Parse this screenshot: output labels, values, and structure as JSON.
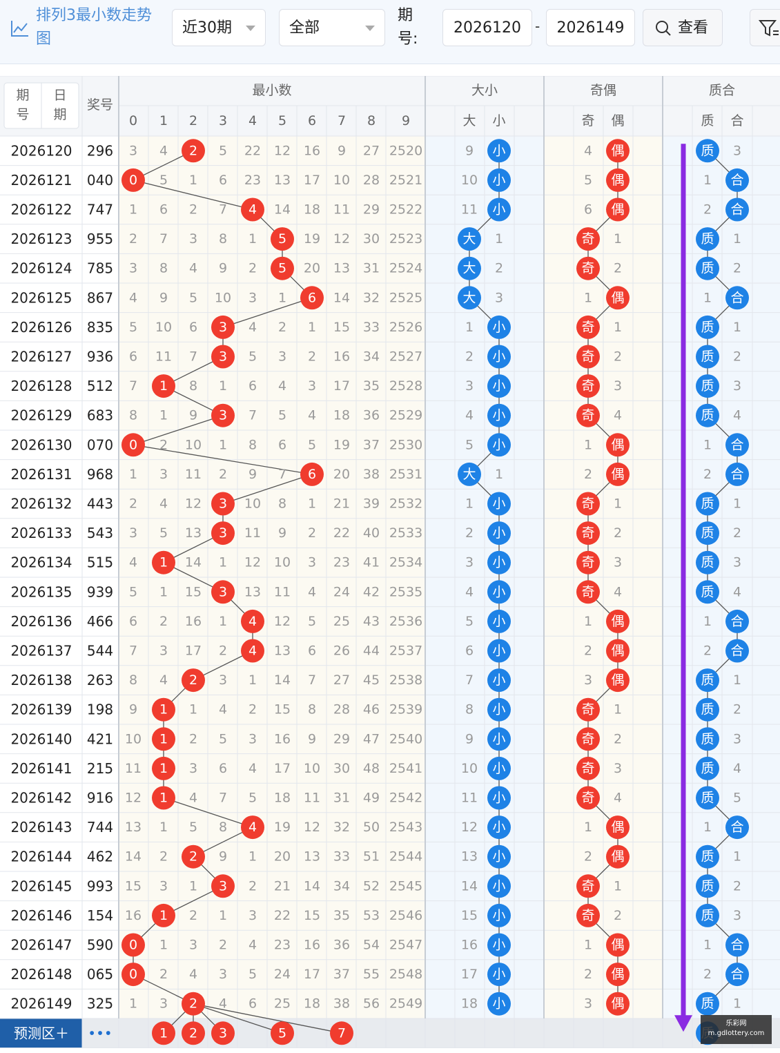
{
  "header": {
    "title": "排列3最小数走势图",
    "title_icon": "line-chart-icon",
    "period_select": "近30期",
    "filter_select": "全部",
    "issue_label": "期号:",
    "issue_from": "2026120",
    "issue_to": "2026149",
    "range_dash": "-",
    "view_button": "查看",
    "view_icon": "search-icon",
    "filter_icon": "filter-icon"
  },
  "table": {
    "col_issue": "期号",
    "col_date": "日期",
    "col_award": "奖号",
    "group_min": "最小数",
    "group_size": "大小",
    "group_oddeven": "奇偶",
    "group_prime": "质合",
    "digits": [
      "0",
      "1",
      "2",
      "3",
      "4",
      "5",
      "6",
      "7",
      "8",
      "9"
    ],
    "size_labels": [
      "大",
      "小"
    ],
    "oddeven_labels": [
      "奇",
      "偶"
    ],
    "prime_labels": [
      "质",
      "合"
    ],
    "rows": [
      {
        "issue": "2026120",
        "award": "296",
        "min": [
          "3",
          "4",
          "2",
          "5",
          "22",
          "12",
          "16",
          "9",
          "27",
          "2520"
        ],
        "size": [
          "9",
          "小"
        ],
        "oe": [
          "4",
          "偶"
        ],
        "pc": [
          "质",
          "3"
        ]
      },
      {
        "issue": "2026121",
        "award": "040",
        "min": [
          "0",
          "5",
          "1",
          "6",
          "23",
          "13",
          "17",
          "10",
          "28",
          "2521"
        ],
        "size": [
          "10",
          "小"
        ],
        "oe": [
          "5",
          "偶"
        ],
        "pc": [
          "1",
          "合"
        ]
      },
      {
        "issue": "2026122",
        "award": "747",
        "min": [
          "1",
          "6",
          "2",
          "7",
          "4",
          "14",
          "18",
          "11",
          "29",
          "2522"
        ],
        "size": [
          "11",
          "小"
        ],
        "oe": [
          "6",
          "偶"
        ],
        "pc": [
          "2",
          "合"
        ]
      },
      {
        "issue": "2026123",
        "award": "955",
        "min": [
          "2",
          "7",
          "3",
          "8",
          "1",
          "5",
          "19",
          "12",
          "30",
          "2523"
        ],
        "size": [
          "大",
          "1"
        ],
        "oe": [
          "奇",
          "1"
        ],
        "pc": [
          "质",
          "1"
        ]
      },
      {
        "issue": "2026124",
        "award": "785",
        "min": [
          "3",
          "8",
          "4",
          "9",
          "2",
          "5",
          "20",
          "13",
          "31",
          "2524"
        ],
        "size": [
          "大",
          "2"
        ],
        "oe": [
          "奇",
          "2"
        ],
        "pc": [
          "质",
          "2"
        ]
      },
      {
        "issue": "2026125",
        "award": "867",
        "min": [
          "4",
          "9",
          "5",
          "10",
          "3",
          "1",
          "6",
          "14",
          "32",
          "2525"
        ],
        "size": [
          "大",
          "3"
        ],
        "oe": [
          "1",
          "偶"
        ],
        "pc": [
          "1",
          "合"
        ]
      },
      {
        "issue": "2026126",
        "award": "835",
        "min": [
          "5",
          "10",
          "6",
          "3",
          "4",
          "2",
          "1",
          "15",
          "33",
          "2526"
        ],
        "size": [
          "1",
          "小"
        ],
        "oe": [
          "奇",
          "1"
        ],
        "pc": [
          "质",
          "1"
        ]
      },
      {
        "issue": "2026127",
        "award": "936",
        "min": [
          "6",
          "11",
          "7",
          "3",
          "5",
          "3",
          "2",
          "16",
          "34",
          "2527"
        ],
        "size": [
          "2",
          "小"
        ],
        "oe": [
          "奇",
          "2"
        ],
        "pc": [
          "质",
          "2"
        ]
      },
      {
        "issue": "2026128",
        "award": "512",
        "min": [
          "7",
          "1",
          "8",
          "1",
          "6",
          "4",
          "3",
          "17",
          "35",
          "2528"
        ],
        "size": [
          "3",
          "小"
        ],
        "oe": [
          "奇",
          "3"
        ],
        "pc": [
          "质",
          "3"
        ]
      },
      {
        "issue": "2026129",
        "award": "683",
        "min": [
          "8",
          "1",
          "9",
          "3",
          "7",
          "5",
          "4",
          "18",
          "36",
          "2529"
        ],
        "size": [
          "4",
          "小"
        ],
        "oe": [
          "奇",
          "4"
        ],
        "pc": [
          "质",
          "4"
        ]
      },
      {
        "issue": "2026130",
        "award": "070",
        "min": [
          "0",
          "2",
          "10",
          "1",
          "8",
          "6",
          "5",
          "19",
          "37",
          "2530"
        ],
        "size": [
          "5",
          "小"
        ],
        "oe": [
          "1",
          "偶"
        ],
        "pc": [
          "1",
          "合"
        ]
      },
      {
        "issue": "2026131",
        "award": "968",
        "min": [
          "1",
          "3",
          "11",
          "2",
          "9",
          "7",
          "6",
          "20",
          "38",
          "2531"
        ],
        "size": [
          "大",
          "1"
        ],
        "oe": [
          "2",
          "偶"
        ],
        "pc": [
          "2",
          "合"
        ]
      },
      {
        "issue": "2026132",
        "award": "443",
        "min": [
          "2",
          "4",
          "12",
          "3",
          "10",
          "8",
          "1",
          "21",
          "39",
          "2532"
        ],
        "size": [
          "1",
          "小"
        ],
        "oe": [
          "奇",
          "1"
        ],
        "pc": [
          "质",
          "1"
        ]
      },
      {
        "issue": "2026133",
        "award": "543",
        "min": [
          "3",
          "5",
          "13",
          "3",
          "11",
          "9",
          "2",
          "22",
          "40",
          "2533"
        ],
        "size": [
          "2",
          "小"
        ],
        "oe": [
          "奇",
          "2"
        ],
        "pc": [
          "质",
          "2"
        ]
      },
      {
        "issue": "2026134",
        "award": "515",
        "min": [
          "4",
          "1",
          "14",
          "1",
          "12",
          "10",
          "3",
          "23",
          "41",
          "2534"
        ],
        "size": [
          "3",
          "小"
        ],
        "oe": [
          "奇",
          "3"
        ],
        "pc": [
          "质",
          "3"
        ]
      },
      {
        "issue": "2026135",
        "award": "939",
        "min": [
          "5",
          "1",
          "15",
          "3",
          "13",
          "11",
          "4",
          "24",
          "42",
          "2535"
        ],
        "size": [
          "4",
          "小"
        ],
        "oe": [
          "奇",
          "4"
        ],
        "pc": [
          "质",
          "4"
        ]
      },
      {
        "issue": "2026136",
        "award": "466",
        "min": [
          "6",
          "2",
          "16",
          "1",
          "4",
          "12",
          "5",
          "25",
          "43",
          "2536"
        ],
        "size": [
          "5",
          "小"
        ],
        "oe": [
          "1",
          "偶"
        ],
        "pc": [
          "1",
          "合"
        ]
      },
      {
        "issue": "2026137",
        "award": "544",
        "min": [
          "7",
          "3",
          "17",
          "2",
          "4",
          "13",
          "6",
          "26",
          "44",
          "2537"
        ],
        "size": [
          "6",
          "小"
        ],
        "oe": [
          "2",
          "偶"
        ],
        "pc": [
          "2",
          "合"
        ]
      },
      {
        "issue": "2026138",
        "award": "263",
        "min": [
          "8",
          "4",
          "2",
          "3",
          "1",
          "14",
          "7",
          "27",
          "45",
          "2538"
        ],
        "size": [
          "7",
          "小"
        ],
        "oe": [
          "3",
          "偶"
        ],
        "pc": [
          "质",
          "1"
        ]
      },
      {
        "issue": "2026139",
        "award": "198",
        "min": [
          "9",
          "1",
          "1",
          "4",
          "2",
          "15",
          "8",
          "28",
          "46",
          "2539"
        ],
        "size": [
          "8",
          "小"
        ],
        "oe": [
          "奇",
          "1"
        ],
        "pc": [
          "质",
          "2"
        ]
      },
      {
        "issue": "2026140",
        "award": "421",
        "min": [
          "10",
          "1",
          "2",
          "5",
          "3",
          "16",
          "9",
          "29",
          "47",
          "2540"
        ],
        "size": [
          "9",
          "小"
        ],
        "oe": [
          "奇",
          "2"
        ],
        "pc": [
          "质",
          "3"
        ]
      },
      {
        "issue": "2026141",
        "award": "215",
        "min": [
          "11",
          "1",
          "3",
          "6",
          "4",
          "17",
          "10",
          "30",
          "48",
          "2541"
        ],
        "size": [
          "10",
          "小"
        ],
        "oe": [
          "奇",
          "3"
        ],
        "pc": [
          "质",
          "4"
        ]
      },
      {
        "issue": "2026142",
        "award": "916",
        "min": [
          "12",
          "1",
          "4",
          "7",
          "5",
          "18",
          "11",
          "31",
          "49",
          "2542"
        ],
        "size": [
          "11",
          "小"
        ],
        "oe": [
          "奇",
          "4"
        ],
        "pc": [
          "质",
          "5"
        ]
      },
      {
        "issue": "2026143",
        "award": "744",
        "min": [
          "13",
          "1",
          "5",
          "8",
          "4",
          "19",
          "12",
          "32",
          "50",
          "2543"
        ],
        "size": [
          "12",
          "小"
        ],
        "oe": [
          "1",
          "偶"
        ],
        "pc": [
          "1",
          "合"
        ]
      },
      {
        "issue": "2026144",
        "award": "462",
        "min": [
          "14",
          "2",
          "2",
          "9",
          "1",
          "20",
          "13",
          "33",
          "51",
          "2544"
        ],
        "size": [
          "13",
          "小"
        ],
        "oe": [
          "2",
          "偶"
        ],
        "pc": [
          "质",
          "1"
        ]
      },
      {
        "issue": "2026145",
        "award": "993",
        "min": [
          "15",
          "3",
          "1",
          "3",
          "2",
          "21",
          "14",
          "34",
          "52",
          "2545"
        ],
        "size": [
          "14",
          "小"
        ],
        "oe": [
          "奇",
          "1"
        ],
        "pc": [
          "质",
          "2"
        ]
      },
      {
        "issue": "2026146",
        "award": "154",
        "min": [
          "16",
          "1",
          "2",
          "1",
          "3",
          "22",
          "15",
          "35",
          "53",
          "2546"
        ],
        "size": [
          "15",
          "小"
        ],
        "oe": [
          "奇",
          "2"
        ],
        "pc": [
          "质",
          "3"
        ]
      },
      {
        "issue": "2026147",
        "award": "590",
        "min": [
          "0",
          "1",
          "3",
          "2",
          "4",
          "23",
          "16",
          "36",
          "54",
          "2547"
        ],
        "size": [
          "16",
          "小"
        ],
        "oe": [
          "1",
          "偶"
        ],
        "pc": [
          "1",
          "合"
        ]
      },
      {
        "issue": "2026148",
        "award": "065",
        "min": [
          "0",
          "2",
          "4",
          "3",
          "5",
          "24",
          "17",
          "37",
          "55",
          "2548"
        ],
        "size": [
          "17",
          "小"
        ],
        "oe": [
          "2",
          "偶"
        ],
        "pc": [
          "2",
          "合"
        ]
      },
      {
        "issue": "2026149",
        "award": "325",
        "min": [
          "1",
          "3",
          "2",
          "4",
          "6",
          "25",
          "18",
          "38",
          "56",
          "2549"
        ],
        "size": [
          "18",
          "小"
        ],
        "oe": [
          "3",
          "偶"
        ],
        "pc": [
          "质",
          "1"
        ]
      }
    ],
    "hits": [
      2,
      0,
      4,
      5,
      5,
      6,
      3,
      3,
      1,
      3,
      0,
      6,
      3,
      3,
      1,
      3,
      4,
      4,
      2,
      1,
      1,
      1,
      1,
      4,
      2,
      3,
      1,
      0,
      0,
      2
    ],
    "size_hit": [
      1,
      1,
      1,
      0,
      0,
      0,
      1,
      1,
      1,
      1,
      1,
      0,
      1,
      1,
      1,
      1,
      1,
      1,
      1,
      1,
      1,
      1,
      1,
      1,
      1,
      1,
      1,
      1,
      1,
      1
    ],
    "oe_hit": [
      1,
      1,
      1,
      0,
      0,
      1,
      0,
      0,
      0,
      0,
      1,
      1,
      0,
      0,
      0,
      0,
      1,
      1,
      1,
      0,
      0,
      0,
      0,
      1,
      1,
      0,
      0,
      1,
      1,
      1
    ],
    "pc_hit": [
      0,
      1,
      1,
      0,
      0,
      1,
      0,
      0,
      0,
      0,
      1,
      1,
      0,
      0,
      0,
      0,
      1,
      1,
      0,
      0,
      0,
      0,
      0,
      1,
      0,
      0,
      0,
      1,
      1,
      0
    ],
    "predict_label": "预测区＋",
    "predict_more": "•••",
    "predict_balls": [
      "1",
      "2",
      "3",
      "5",
      "7"
    ],
    "predict_cols": [
      1,
      2,
      3,
      5,
      7
    ],
    "predict_prime": "质"
  },
  "watermark": {
    "line1": "乐彩网",
    "line2": "m.gdlottery.com"
  },
  "colors": {
    "red": "#f03c2e",
    "blue": "#1e82e6",
    "purple": "#8a2be2",
    "accent": "#4f8fd8"
  }
}
